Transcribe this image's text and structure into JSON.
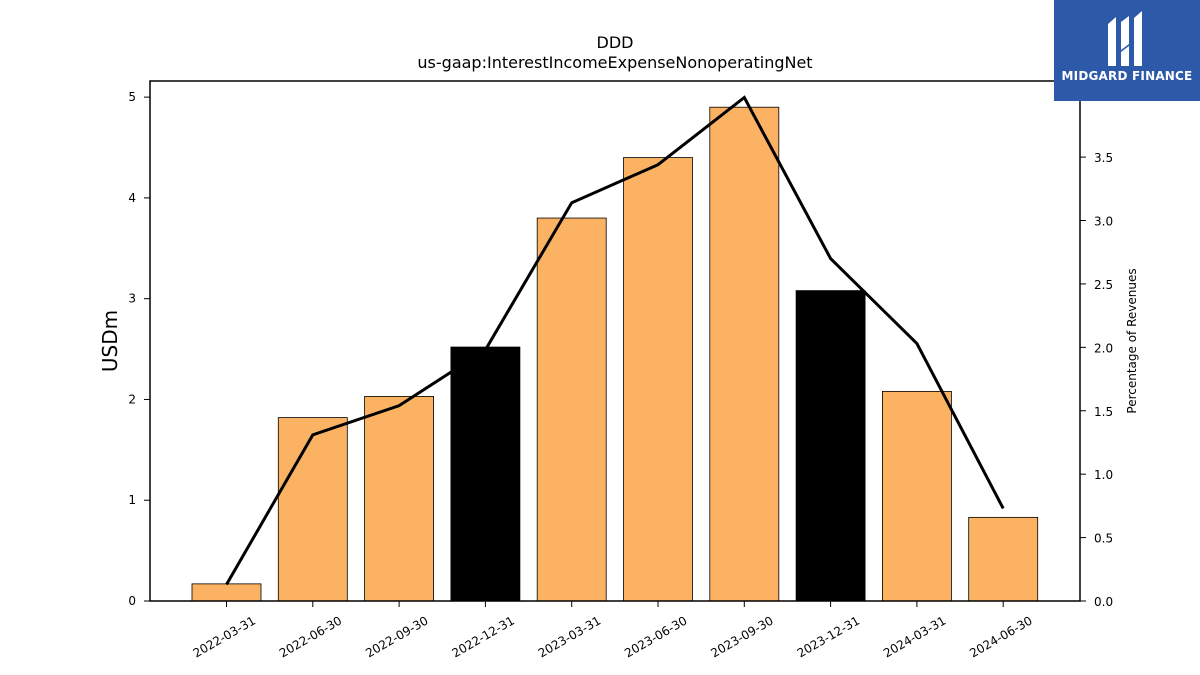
{
  "chart_data": {
    "type": "bar",
    "title": "DDD",
    "subtitle": "us-gaap:InterestIncomeExpenseNonoperatingNet",
    "ylabel": "USDm",
    "y2label": "Percentage of Revenues",
    "categories": [
      "2022-03-31",
      "2022-06-30",
      "2022-09-30",
      "2022-12-31",
      "2023-03-31",
      "2023-06-30",
      "2023-09-30",
      "2023-12-31",
      "2024-03-31",
      "2024-06-30"
    ],
    "series": [
      {
        "type": "bar",
        "axis": "left",
        "values": [
          0.17,
          1.82,
          2.03,
          2.52,
          3.8,
          4.4,
          4.9,
          3.08,
          2.08,
          0.83
        ],
        "colors": [
          "#fbb363",
          "#fbb363",
          "#fbb363",
          "#000000",
          "#fbb363",
          "#fbb363",
          "#fbb363",
          "#000000",
          "#fbb363",
          "#fbb363"
        ]
      },
      {
        "type": "line",
        "axis": "right",
        "color": "#000000",
        "values": [
          0.13,
          1.31,
          1.54,
          1.98,
          3.14,
          3.44,
          3.97,
          2.7,
          2.03,
          0.73
        ]
      }
    ],
    "ylim": [
      0,
      5.16
    ],
    "yticks": [
      "0",
      "1",
      "2",
      "3",
      "4",
      "5"
    ],
    "y2lim": [
      0,
      4.1
    ],
    "y2ticks": [
      "0.0",
      "0.5",
      "1.0",
      "1.5",
      "2.0",
      "2.5",
      "3.0",
      "3.5"
    ]
  },
  "logo": {
    "text": "MIDGARD FINANCE",
    "background": "#2d5aa8"
  }
}
